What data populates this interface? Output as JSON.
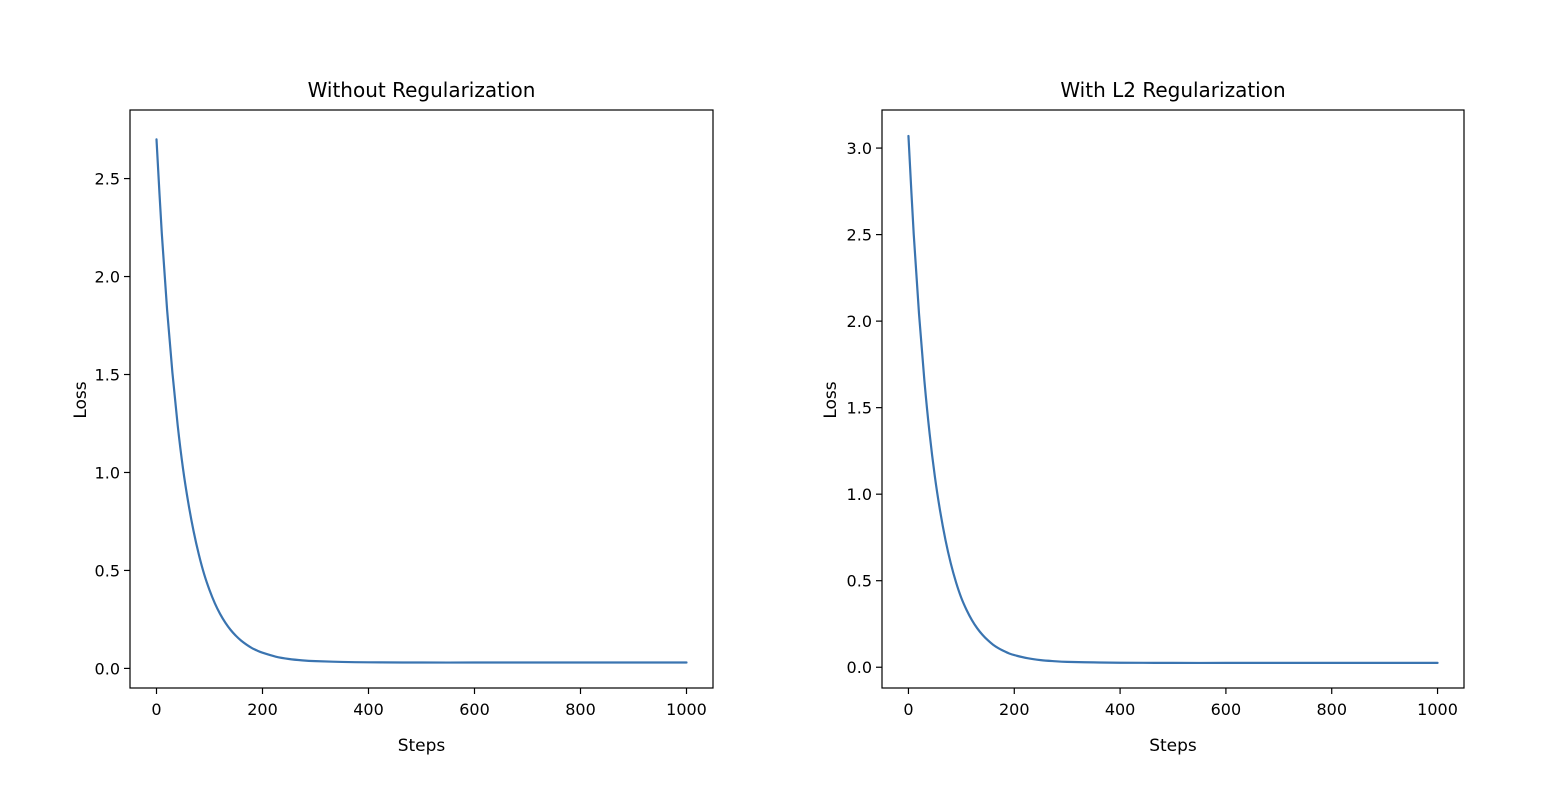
{
  "chart_data": [
    {
      "type": "line",
      "title": "Without Regularization",
      "xlabel": "Steps",
      "ylabel": "Loss",
      "xlim": [
        -50,
        1050
      ],
      "ylim": [
        -0.1,
        2.85
      ],
      "xticks": [
        0,
        200,
        400,
        600,
        800,
        1000
      ],
      "xtick_labels": [
        "0",
        "200",
        "400",
        "600",
        "800",
        "1000"
      ],
      "yticks": [
        0.0,
        0.5,
        1.0,
        1.5,
        2.0,
        2.5
      ],
      "ytick_labels": [
        "0.0",
        "0.5",
        "1.0",
        "1.5",
        "2.0",
        "2.5"
      ],
      "grid": false,
      "color": "#3a74b0",
      "series": [
        {
          "x": [
            0,
            10,
            20,
            30,
            40,
            50,
            60,
            70,
            80,
            90,
            100,
            110,
            120,
            130,
            140,
            150,
            160,
            170,
            180,
            190,
            200,
            225,
            250,
            275,
            300,
            350,
            400,
            500,
            600,
            700,
            800,
            900,
            1000
          ],
          "values": [
            2.7,
            2.22,
            1.83,
            1.51,
            1.24,
            1.02,
            0.845,
            0.7,
            0.58,
            0.48,
            0.4,
            0.333,
            0.278,
            0.233,
            0.196,
            0.166,
            0.141,
            0.121,
            0.104,
            0.091,
            0.08,
            0.06,
            0.048,
            0.041,
            0.037,
            0.033,
            0.031,
            0.03,
            0.03,
            0.03,
            0.03,
            0.03,
            0.03
          ]
        }
      ]
    },
    {
      "type": "line",
      "title": "With L2 Regularization",
      "xlabel": "Steps",
      "ylabel": "Loss",
      "xlim": [
        -50,
        1050
      ],
      "ylim": [
        -0.12,
        3.22
      ],
      "xticks": [
        0,
        200,
        400,
        600,
        800,
        1000
      ],
      "xtick_labels": [
        "0",
        "200",
        "400",
        "600",
        "800",
        "1000"
      ],
      "yticks": [
        0.0,
        0.5,
        1.0,
        1.5,
        2.0,
        2.5,
        3.0
      ],
      "ytick_labels": [
        "0.0",
        "0.5",
        "1.0",
        "1.5",
        "2.0",
        "2.5",
        "3.0"
      ],
      "grid": false,
      "color": "#3a74b0",
      "series": [
        {
          "x": [
            0,
            10,
            20,
            30,
            40,
            50,
            60,
            70,
            80,
            90,
            100,
            110,
            120,
            130,
            140,
            150,
            160,
            170,
            180,
            190,
            200,
            225,
            250,
            275,
            300,
            350,
            400,
            500,
            600,
            700,
            800,
            900,
            1000
          ],
          "values": [
            3.07,
            2.5,
            2.04,
            1.66,
            1.35,
            1.1,
            0.9,
            0.735,
            0.6,
            0.49,
            0.4,
            0.33,
            0.272,
            0.225,
            0.187,
            0.156,
            0.13,
            0.11,
            0.094,
            0.08,
            0.07,
            0.052,
            0.041,
            0.035,
            0.031,
            0.028,
            0.026,
            0.025,
            0.025,
            0.025,
            0.025,
            0.025,
            0.025
          ]
        }
      ]
    }
  ]
}
